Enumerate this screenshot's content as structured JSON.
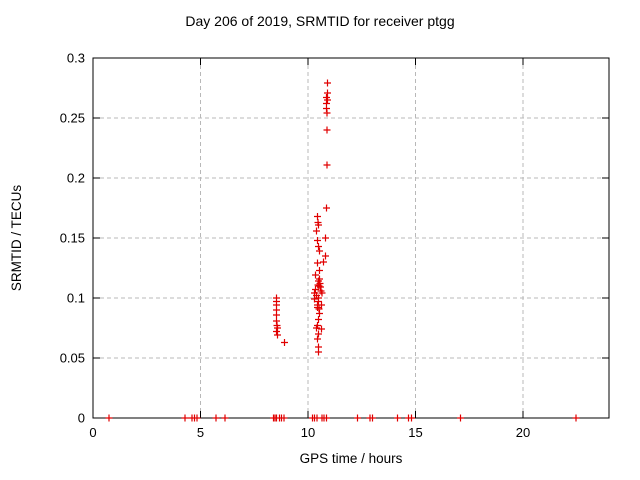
{
  "chart_data": {
    "type": "scatter",
    "title": "Day 206 of 2019, SRMTID for receiver ptgg",
    "xlabel": "GPS time / hours",
    "ylabel": "SRMTID / TECUs",
    "xlim": [
      0,
      24
    ],
    "ylim": [
      0,
      0.3
    ],
    "x_ticks": [
      0,
      5,
      10,
      15,
      20
    ],
    "x_tick_labels": [
      "0",
      "5",
      "10",
      "15",
      "20"
    ],
    "y_ticks": [
      0,
      0.05,
      0.1,
      0.15,
      0.2,
      0.25,
      0.3
    ],
    "y_tick_labels": [
      "0",
      "0.05",
      "0.1",
      "0.15",
      "0.2",
      "0.25",
      "0.3"
    ],
    "grid": true,
    "grid_style": "dashed",
    "legend": "none",
    "marker": "plus",
    "marker_color": "#e00000",
    "axis_color": "#000000",
    "grid_color": "#b8b8b8",
    "background_color": "#ffffff",
    "series": [
      {
        "name": "SRMTID",
        "points": [
          [
            0.75,
            0
          ],
          [
            4.28,
            0
          ],
          [
            4.6,
            0
          ],
          [
            4.72,
            0
          ],
          [
            4.84,
            0
          ],
          [
            5.73,
            0
          ],
          [
            6.15,
            0
          ],
          [
            8.39,
            0
          ],
          [
            8.46,
            0
          ],
          [
            8.53,
            0
          ],
          [
            8.67,
            0
          ],
          [
            8.76,
            0
          ],
          [
            8.88,
            0
          ],
          [
            10.21,
            0
          ],
          [
            10.3,
            0
          ],
          [
            10.41,
            0
          ],
          [
            10.65,
            0
          ],
          [
            10.74,
            0
          ],
          [
            10.85,
            0
          ],
          [
            12.3,
            0
          ],
          [
            12.88,
            0
          ],
          [
            12.99,
            0
          ],
          [
            14.17,
            0
          ],
          [
            14.68,
            0
          ],
          [
            14.82,
            0
          ],
          [
            17.1,
            0
          ],
          [
            22.46,
            0
          ],
          [
            8.53,
            0.1
          ],
          [
            8.53,
            0.097
          ],
          [
            8.53,
            0.094
          ],
          [
            8.53,
            0.09
          ],
          [
            8.53,
            0.086
          ],
          [
            8.53,
            0.081
          ],
          [
            8.55,
            0.077
          ],
          [
            8.57,
            0.075
          ],
          [
            8.53,
            0.072
          ],
          [
            8.57,
            0.069
          ],
          [
            8.9,
            0.063
          ],
          [
            10.9,
            0.279
          ],
          [
            10.9,
            0.271
          ],
          [
            10.86,
            0.267
          ],
          [
            10.9,
            0.265
          ],
          [
            10.86,
            0.262
          ],
          [
            10.86,
            0.258
          ],
          [
            10.88,
            0.254
          ],
          [
            10.88,
            0.24
          ],
          [
            10.88,
            0.211
          ],
          [
            10.86,
            0.175
          ],
          [
            10.44,
            0.168
          ],
          [
            10.46,
            0.163
          ],
          [
            10.49,
            0.161
          ],
          [
            10.39,
            0.156
          ],
          [
            10.81,
            0.15
          ],
          [
            10.44,
            0.148
          ],
          [
            10.48,
            0.143
          ],
          [
            10.53,
            0.139
          ],
          [
            10.81,
            0.135
          ],
          [
            10.72,
            0.13
          ],
          [
            10.44,
            0.129
          ],
          [
            10.53,
            0.123
          ],
          [
            10.35,
            0.119
          ],
          [
            10.53,
            0.116
          ],
          [
            10.48,
            0.114
          ],
          [
            10.55,
            0.112
          ],
          [
            10.46,
            0.111
          ],
          [
            10.5,
            0.11
          ],
          [
            10.58,
            0.109
          ],
          [
            10.35,
            0.107
          ],
          [
            10.6,
            0.106
          ],
          [
            10.3,
            0.104
          ],
          [
            10.65,
            0.104
          ],
          [
            10.39,
            0.102
          ],
          [
            10.48,
            0.1
          ],
          [
            10.3,
            0.099
          ],
          [
            10.48,
            0.097
          ],
          [
            10.44,
            0.094
          ],
          [
            10.62,
            0.094
          ],
          [
            10.44,
            0.092
          ],
          [
            10.5,
            0.091
          ],
          [
            10.53,
            0.087
          ],
          [
            10.48,
            0.082
          ],
          [
            10.44,
            0.077
          ],
          [
            10.39,
            0.075
          ],
          [
            10.62,
            0.074
          ],
          [
            10.48,
            0.07
          ],
          [
            10.44,
            0.066
          ],
          [
            10.48,
            0.059
          ],
          [
            10.48,
            0.055
          ]
        ]
      }
    ]
  }
}
